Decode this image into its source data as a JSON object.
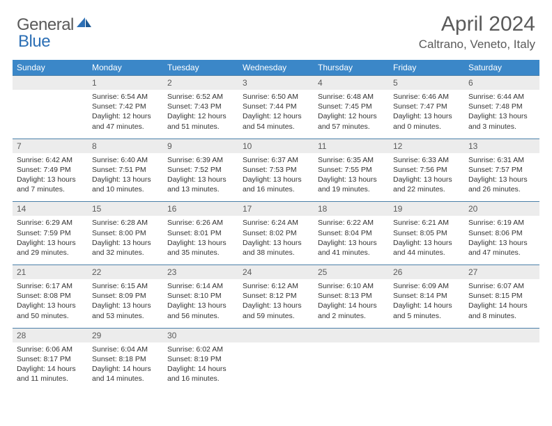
{
  "brand": {
    "word1": "General",
    "word2": "Blue"
  },
  "title": "April 2024",
  "location": "Caltrano, Veneto, Italy",
  "colors": {
    "header_bg": "#3b87c8",
    "header_text": "#ffffff",
    "daynum_bg": "#ececec",
    "daynum_border_top": "#4a7fa8",
    "text_primary": "#5a5a5a",
    "text_body": "#333333",
    "logo_blue": "#2c6fb5"
  },
  "days_of_week": [
    "Sunday",
    "Monday",
    "Tuesday",
    "Wednesday",
    "Thursday",
    "Friday",
    "Saturday"
  ],
  "weeks": [
    {
      "nums": [
        "",
        "1",
        "2",
        "3",
        "4",
        "5",
        "6"
      ],
      "cells": [
        null,
        {
          "sunrise": "Sunrise: 6:54 AM",
          "sunset": "Sunset: 7:42 PM",
          "day1": "Daylight: 12 hours",
          "day2": "and 47 minutes."
        },
        {
          "sunrise": "Sunrise: 6:52 AM",
          "sunset": "Sunset: 7:43 PM",
          "day1": "Daylight: 12 hours",
          "day2": "and 51 minutes."
        },
        {
          "sunrise": "Sunrise: 6:50 AM",
          "sunset": "Sunset: 7:44 PM",
          "day1": "Daylight: 12 hours",
          "day2": "and 54 minutes."
        },
        {
          "sunrise": "Sunrise: 6:48 AM",
          "sunset": "Sunset: 7:45 PM",
          "day1": "Daylight: 12 hours",
          "day2": "and 57 minutes."
        },
        {
          "sunrise": "Sunrise: 6:46 AM",
          "sunset": "Sunset: 7:47 PM",
          "day1": "Daylight: 13 hours",
          "day2": "and 0 minutes."
        },
        {
          "sunrise": "Sunrise: 6:44 AM",
          "sunset": "Sunset: 7:48 PM",
          "day1": "Daylight: 13 hours",
          "day2": "and 3 minutes."
        }
      ]
    },
    {
      "nums": [
        "7",
        "8",
        "9",
        "10",
        "11",
        "12",
        "13"
      ],
      "cells": [
        {
          "sunrise": "Sunrise: 6:42 AM",
          "sunset": "Sunset: 7:49 PM",
          "day1": "Daylight: 13 hours",
          "day2": "and 7 minutes."
        },
        {
          "sunrise": "Sunrise: 6:40 AM",
          "sunset": "Sunset: 7:51 PM",
          "day1": "Daylight: 13 hours",
          "day2": "and 10 minutes."
        },
        {
          "sunrise": "Sunrise: 6:39 AM",
          "sunset": "Sunset: 7:52 PM",
          "day1": "Daylight: 13 hours",
          "day2": "and 13 minutes."
        },
        {
          "sunrise": "Sunrise: 6:37 AM",
          "sunset": "Sunset: 7:53 PM",
          "day1": "Daylight: 13 hours",
          "day2": "and 16 minutes."
        },
        {
          "sunrise": "Sunrise: 6:35 AM",
          "sunset": "Sunset: 7:55 PM",
          "day1": "Daylight: 13 hours",
          "day2": "and 19 minutes."
        },
        {
          "sunrise": "Sunrise: 6:33 AM",
          "sunset": "Sunset: 7:56 PM",
          "day1": "Daylight: 13 hours",
          "day2": "and 22 minutes."
        },
        {
          "sunrise": "Sunrise: 6:31 AM",
          "sunset": "Sunset: 7:57 PM",
          "day1": "Daylight: 13 hours",
          "day2": "and 26 minutes."
        }
      ]
    },
    {
      "nums": [
        "14",
        "15",
        "16",
        "17",
        "18",
        "19",
        "20"
      ],
      "cells": [
        {
          "sunrise": "Sunrise: 6:29 AM",
          "sunset": "Sunset: 7:59 PM",
          "day1": "Daylight: 13 hours",
          "day2": "and 29 minutes."
        },
        {
          "sunrise": "Sunrise: 6:28 AM",
          "sunset": "Sunset: 8:00 PM",
          "day1": "Daylight: 13 hours",
          "day2": "and 32 minutes."
        },
        {
          "sunrise": "Sunrise: 6:26 AM",
          "sunset": "Sunset: 8:01 PM",
          "day1": "Daylight: 13 hours",
          "day2": "and 35 minutes."
        },
        {
          "sunrise": "Sunrise: 6:24 AM",
          "sunset": "Sunset: 8:02 PM",
          "day1": "Daylight: 13 hours",
          "day2": "and 38 minutes."
        },
        {
          "sunrise": "Sunrise: 6:22 AM",
          "sunset": "Sunset: 8:04 PM",
          "day1": "Daylight: 13 hours",
          "day2": "and 41 minutes."
        },
        {
          "sunrise": "Sunrise: 6:21 AM",
          "sunset": "Sunset: 8:05 PM",
          "day1": "Daylight: 13 hours",
          "day2": "and 44 minutes."
        },
        {
          "sunrise": "Sunrise: 6:19 AM",
          "sunset": "Sunset: 8:06 PM",
          "day1": "Daylight: 13 hours",
          "day2": "and 47 minutes."
        }
      ]
    },
    {
      "nums": [
        "21",
        "22",
        "23",
        "24",
        "25",
        "26",
        "27"
      ],
      "cells": [
        {
          "sunrise": "Sunrise: 6:17 AM",
          "sunset": "Sunset: 8:08 PM",
          "day1": "Daylight: 13 hours",
          "day2": "and 50 minutes."
        },
        {
          "sunrise": "Sunrise: 6:15 AM",
          "sunset": "Sunset: 8:09 PM",
          "day1": "Daylight: 13 hours",
          "day2": "and 53 minutes."
        },
        {
          "sunrise": "Sunrise: 6:14 AM",
          "sunset": "Sunset: 8:10 PM",
          "day1": "Daylight: 13 hours",
          "day2": "and 56 minutes."
        },
        {
          "sunrise": "Sunrise: 6:12 AM",
          "sunset": "Sunset: 8:12 PM",
          "day1": "Daylight: 13 hours",
          "day2": "and 59 minutes."
        },
        {
          "sunrise": "Sunrise: 6:10 AM",
          "sunset": "Sunset: 8:13 PM",
          "day1": "Daylight: 14 hours",
          "day2": "and 2 minutes."
        },
        {
          "sunrise": "Sunrise: 6:09 AM",
          "sunset": "Sunset: 8:14 PM",
          "day1": "Daylight: 14 hours",
          "day2": "and 5 minutes."
        },
        {
          "sunrise": "Sunrise: 6:07 AM",
          "sunset": "Sunset: 8:15 PM",
          "day1": "Daylight: 14 hours",
          "day2": "and 8 minutes."
        }
      ]
    },
    {
      "nums": [
        "28",
        "29",
        "30",
        "",
        "",
        "",
        ""
      ],
      "cells": [
        {
          "sunrise": "Sunrise: 6:06 AM",
          "sunset": "Sunset: 8:17 PM",
          "day1": "Daylight: 14 hours",
          "day2": "and 11 minutes."
        },
        {
          "sunrise": "Sunrise: 6:04 AM",
          "sunset": "Sunset: 8:18 PM",
          "day1": "Daylight: 14 hours",
          "day2": "and 14 minutes."
        },
        {
          "sunrise": "Sunrise: 6:02 AM",
          "sunset": "Sunset: 8:19 PM",
          "day1": "Daylight: 14 hours",
          "day2": "and 16 minutes."
        },
        null,
        null,
        null,
        null
      ]
    }
  ]
}
